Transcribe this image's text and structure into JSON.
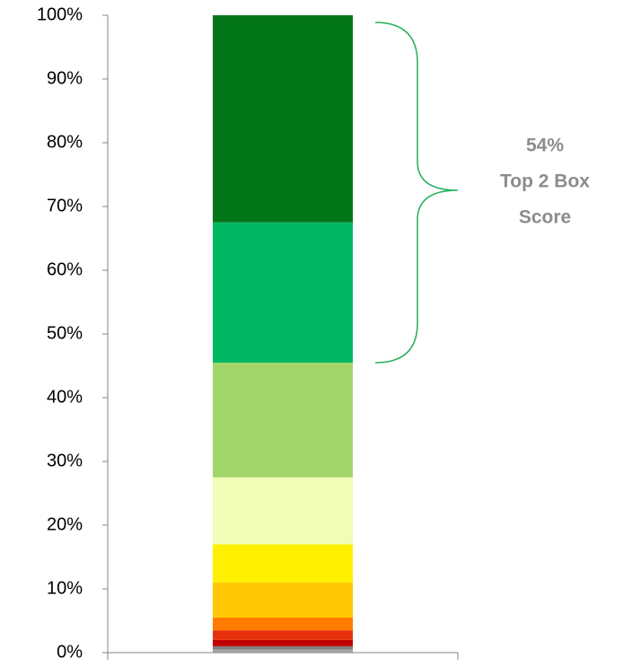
{
  "chart_data": {
    "type": "stacked_bar",
    "categories": [
      null
    ],
    "series": [
      {
        "color": "#a6a6a6",
        "values": [
          0.5
        ]
      },
      {
        "color": "#808080",
        "values": [
          0.5
        ]
      },
      {
        "color": "#c00000",
        "values": [
          1
        ]
      },
      {
        "color": "#e8300a",
        "values": [
          1.5
        ]
      },
      {
        "color": "#ff7c00",
        "values": [
          2
        ]
      },
      {
        "color": "#ffc800",
        "values": [
          5.5
        ]
      },
      {
        "color": "#fff000",
        "values": [
          6
        ]
      },
      {
        "color": "#f2fcb4",
        "values": [
          10.5
        ]
      },
      {
        "color": "#a2d66a",
        "values": [
          18
        ]
      },
      {
        "color": "#00b864",
        "values": [
          22
        ]
      },
      {
        "color": "#037617",
        "values": [
          32.5
        ]
      }
    ],
    "ylim": [
      0,
      100
    ],
    "yticks": [
      {
        "value": 0,
        "label": "0%"
      },
      {
        "value": 10,
        "label": "10%"
      },
      {
        "value": 20,
        "label": "20%"
      },
      {
        "value": 30,
        "label": "30%"
      },
      {
        "value": 40,
        "label": "40%"
      },
      {
        "value": 50,
        "label": "50%"
      },
      {
        "value": 60,
        "label": "60%"
      },
      {
        "value": 70,
        "label": "70%"
      },
      {
        "value": 80,
        "label": "80%"
      },
      {
        "value": 90,
        "label": "90%"
      },
      {
        "value": 100,
        "label": "100%"
      }
    ],
    "annotation": [
      "54%",
      "Top 2 Box",
      "Score"
    ]
  }
}
